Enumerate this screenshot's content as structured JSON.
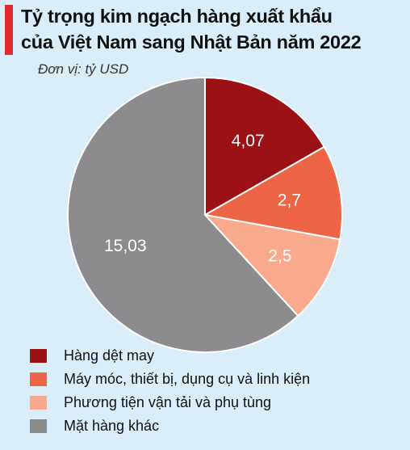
{
  "chart_data": {
    "type": "pie",
    "title_lines": [
      "Tỷ trọng kim ngạch hàng xuất khẩu",
      "của Việt Nam sang Nhật Bản năm 2022"
    ],
    "unit_label": "Đơn vị: tỷ USD",
    "categories": [
      "Hàng dệt may",
      "Máy móc, thiết bị, dụng cụ và linh kiện",
      "Phương tiện vận tải và phụ tùng",
      "Mặt hàng khác"
    ],
    "values": [
      4.07,
      2.7,
      2.5,
      15.03
    ],
    "value_labels": [
      "4,07",
      "2,7",
      "2,5",
      "15,03"
    ],
    "colors": [
      "#9b1115",
      "#ee6447",
      "#f9a98c",
      "#8c8c8f"
    ],
    "label_colors": [
      "#ffffff",
      "#ffffff",
      "#ffffff",
      "#ffffff"
    ],
    "start": "12 o'clock",
    "direction": "clockwise",
    "legend_position": "bottom-left"
  },
  "accent_color": "#e02a2f"
}
